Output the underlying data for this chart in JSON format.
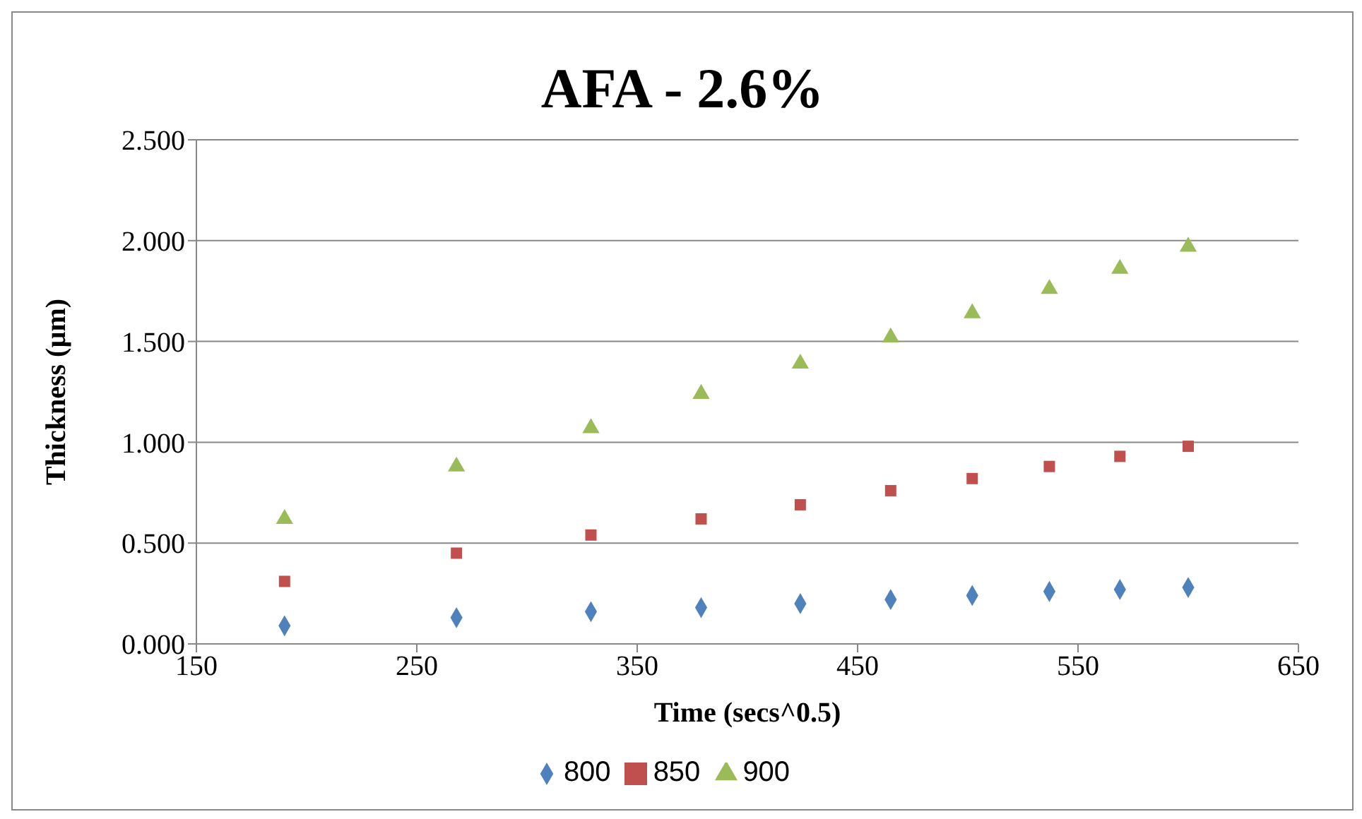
{
  "chart_data": {
    "type": "scatter",
    "title": "AFA - 2.6%",
    "xlabel": "Time (secs^0.5)",
    "ylabel": "Thickness (µm)",
    "xlim": [
      150,
      650
    ],
    "xticks": [
      150,
      250,
      350,
      450,
      550,
      650
    ],
    "ylim": [
      0,
      2.5
    ],
    "yticks": [
      {
        "value": 0,
        "label": "0.000"
      },
      {
        "value": 0.5,
        "label": "0.500"
      },
      {
        "value": 1,
        "label": "1.000"
      },
      {
        "value": 1.5,
        "label": "1.500"
      },
      {
        "value": 2,
        "label": "2.000"
      },
      {
        "value": 2.5,
        "label": "2.500"
      }
    ],
    "grid": "y",
    "legend": "bottom",
    "x": [
      190,
      268,
      329,
      379,
      424,
      465,
      502,
      537,
      569,
      600
    ],
    "series": [
      {
        "name": "800",
        "color": "#4f81bd",
        "marker": "diamond",
        "values": [
          0.09,
          0.13,
          0.16,
          0.18,
          0.2,
          0.22,
          0.24,
          0.26,
          0.27,
          0.28
        ]
      },
      {
        "name": "850",
        "color": "#c0504d",
        "marker": "square",
        "values": [
          0.31,
          0.45,
          0.54,
          0.62,
          0.69,
          0.76,
          0.82,
          0.88,
          0.93,
          0.98
        ]
      },
      {
        "name": "900",
        "color": "#9bbb59",
        "marker": "triangle",
        "values": [
          0.62,
          0.88,
          1.07,
          1.24,
          1.39,
          1.52,
          1.64,
          1.76,
          1.86,
          1.97
        ]
      }
    ]
  }
}
